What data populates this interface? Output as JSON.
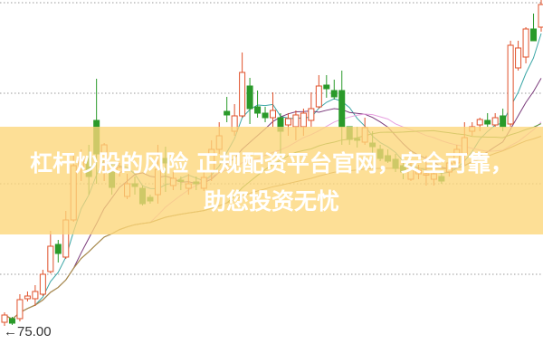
{
  "banner": {
    "line1": "杠杆炒股的风险 正规配资平台官网，安全可靠，",
    "line2": "助您投资无忧"
  },
  "chart_data": {
    "type": "candlestick",
    "title": "",
    "xlabel": "",
    "ylabel": "",
    "ylim": [
      70.5,
      110.5
    ],
    "grid": true,
    "annotation": {
      "label": "75.00",
      "arrow": "←",
      "value": 75.0
    },
    "colors": {
      "up": "#e0502a",
      "down": "#2a9a2a",
      "ma5": "#3aa6a6",
      "ma10": "#7a3a7a",
      "ma20": "#e7a0e0",
      "ma30": "#5a9a3a",
      "ma60": "#b0894a"
    },
    "candles": [
      [
        74.9,
        76.0,
        74.5,
        75.7
      ],
      [
        75.3,
        75.5,
        74.6,
        74.8
      ],
      [
        75.3,
        78.0,
        75.0,
        77.4
      ],
      [
        77.5,
        78.3,
        77.2,
        77.8
      ],
      [
        77.5,
        79.0,
        76.7,
        78.3
      ],
      [
        78.0,
        80.7,
        77.8,
        80.2
      ],
      [
        80.5,
        85.0,
        80.3,
        83.3
      ],
      [
        83.5,
        84.0,
        81.5,
        82.5
      ],
      [
        82.1,
        87.2,
        81.9,
        86.2
      ],
      [
        86.2,
        93.5,
        86.0,
        92.2
      ],
      [
        92.0,
        94.0,
        90.5,
        93.0
      ],
      [
        93.0,
        94.5,
        89.0,
        91.0
      ],
      [
        97.2,
        101.8,
        90.2,
        93.5
      ],
      [
        93.0,
        94.7,
        90.5,
        94.5
      ],
      [
        91.5,
        92.5,
        89.0,
        89.8
      ],
      [
        91.5,
        92.5,
        91.0,
        92.0
      ],
      [
        88.8,
        91.3,
        88.5,
        90.2
      ],
      [
        90.2,
        91.0,
        89.0,
        89.9
      ],
      [
        89.7,
        90.0,
        87.8,
        88.0
      ],
      [
        88.7,
        89.0,
        88.0,
        88.3
      ],
      [
        89.0,
        94.5,
        88.0,
        91.8
      ],
      [
        93.0,
        94.3,
        89.3,
        92.5
      ],
      [
        90.0,
        91.5,
        89.5,
        90.8
      ],
      [
        90.6,
        91.0,
        89.5,
        90.5
      ],
      [
        89.7,
        91.3,
        89.0,
        90.2
      ],
      [
        90.4,
        91.0,
        89.5,
        90.2
      ],
      [
        89.7,
        91.5,
        89.4,
        90.9
      ],
      [
        91.5,
        95.0,
        90.5,
        94.0
      ],
      [
        94.0,
        97.0,
        93.5,
        95.5
      ],
      [
        98.2,
        99.8,
        97.0,
        97.8
      ],
      [
        96.0,
        99.0,
        95.5,
        97.7
      ],
      [
        97.7,
        104.7,
        97.5,
        102.5
      ],
      [
        101.0,
        101.9,
        96.8,
        98.5
      ],
      [
        98.7,
        100.5,
        97.5,
        98.0
      ],
      [
        98.0,
        98.7,
        97.0,
        97.5
      ],
      [
        97.5,
        100.3,
        96.5,
        98.3
      ],
      [
        97.5,
        98.0,
        93.5,
        96.0
      ],
      [
        96.7,
        98.0,
        95.5,
        97.4
      ],
      [
        96.5,
        98.3,
        95.0,
        97.8
      ],
      [
        96.5,
        98.5,
        95.5,
        98.0
      ],
      [
        97.2,
        100.3,
        96.5,
        98.5
      ],
      [
        98.7,
        102.2,
        98.5,
        101.0
      ],
      [
        101.1,
        102.2,
        99.7,
        100.7
      ],
      [
        100.5,
        101.7,
        99.5,
        99.8
      ],
      [
        100.5,
        102.7,
        94.5,
        96.5
      ],
      [
        96.5,
        96.5,
        94.5,
        95.1
      ],
      [
        95.2,
        96.5,
        94.2,
        95.0
      ],
      [
        94.8,
        97.5,
        94.5,
        96.4
      ],
      [
        94.7,
        96.0,
        93.5,
        94.3
      ],
      [
        94.0,
        94.5,
        92.7,
        93.0
      ],
      [
        93.3,
        94.0,
        92.5,
        92.7
      ],
      [
        92.9,
        93.5,
        91.5,
        91.9
      ],
      [
        92.2,
        92.9,
        90.7,
        91.5
      ],
      [
        90.7,
        92.5,
        90.5,
        92.0
      ],
      [
        91.3,
        92.3,
        90.7,
        91.7
      ],
      [
        91.2,
        93.3,
        90.0,
        91.3
      ],
      [
        90.7,
        92.0,
        90.0,
        91.3
      ],
      [
        91.0,
        91.5,
        90.2,
        90.5
      ],
      [
        91.5,
        92.5,
        91.0,
        92.5
      ],
      [
        92.5,
        94.5,
        92.0,
        94.0
      ],
      [
        93.5,
        97.0,
        92.3,
        95.3
      ],
      [
        96.0,
        97.0,
        95.5,
        96.5
      ],
      [
        96.7,
        97.5,
        96.0,
        97.3
      ],
      [
        97.2,
        98.0,
        96.5,
        96.8
      ],
      [
        96.7,
        98.0,
        96.5,
        97.5
      ],
      [
        97.7,
        98.5,
        96.0,
        96.5
      ],
      [
        96.8,
        106.0,
        96.5,
        105.5
      ],
      [
        103.0,
        106.0,
        102.7,
        105.2
      ],
      [
        104.2,
        107.5,
        103.5,
        107.3
      ],
      [
        107.3,
        109.0,
        106.0,
        106.0
      ],
      [
        107.5,
        110.5,
        107.0,
        110.0
      ]
    ],
    "moving_averages": [
      5,
      10,
      20,
      30,
      60
    ]
  }
}
